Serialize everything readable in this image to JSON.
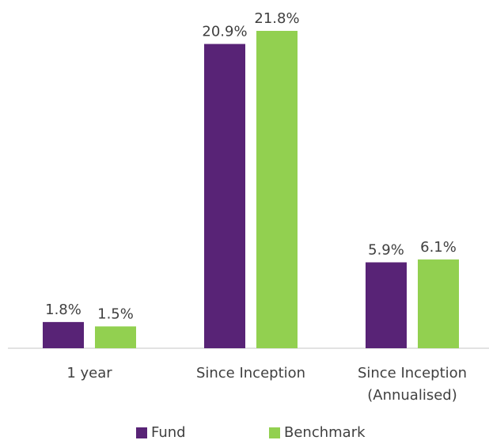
{
  "chart_data": {
    "type": "bar",
    "categories": [
      "1 year",
      "Since Inception",
      "Since Inception (Annualised)"
    ],
    "series": [
      {
        "name": "Fund",
        "color": "#582376",
        "values": [
          1.8,
          20.9,
          5.9
        ],
        "value_labels": [
          "1.8%",
          "20.9%",
          "5.9%"
        ]
      },
      {
        "name": "Benchmark",
        "color": "#92d050",
        "values": [
          1.5,
          21.8,
          6.1
        ],
        "value_labels": [
          "1.5%",
          "21.8%",
          "6.1%"
        ]
      }
    ],
    "legend": "bottom"
  }
}
